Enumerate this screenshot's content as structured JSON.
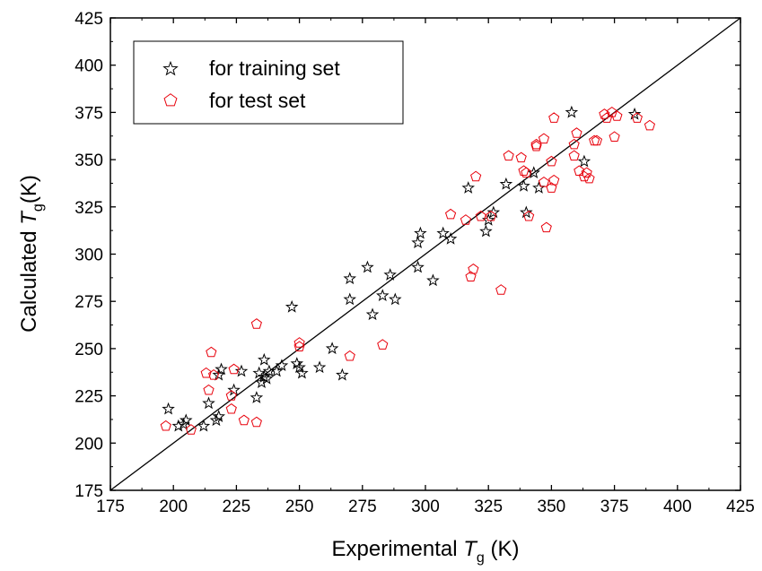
{
  "chart_data": {
    "type": "scatter",
    "title": "",
    "xlabel": {
      "prefix": "Experimental ",
      "symbol": "T",
      "subscript": "g",
      "suffix": " (K)"
    },
    "ylabel": {
      "prefix": "Calculated ",
      "symbol": "T",
      "subscript": "g",
      "suffix": "(K)"
    },
    "xlim": [
      175,
      425
    ],
    "ylim": [
      175,
      425
    ],
    "x_ticks": [
      175,
      200,
      225,
      250,
      275,
      300,
      325,
      350,
      375,
      400,
      425
    ],
    "y_ticks": [
      175,
      200,
      225,
      250,
      275,
      300,
      325,
      350,
      375,
      400,
      425
    ],
    "grid": false,
    "legend_position": "top-left",
    "reference_line": {
      "type": "y=x"
    },
    "series": [
      {
        "name": "for training set",
        "marker": "star",
        "color": "#000000",
        "points": [
          [
            198,
            218
          ],
          [
            202,
            209
          ],
          [
            204,
            210
          ],
          [
            205,
            212
          ],
          [
            212,
            209
          ],
          [
            214,
            221
          ],
          [
            217,
            212
          ],
          [
            218,
            214
          ],
          [
            218,
            236
          ],
          [
            219,
            239
          ],
          [
            224,
            228
          ],
          [
            227,
            238
          ],
          [
            233,
            224
          ],
          [
            234,
            237
          ],
          [
            235,
            232
          ],
          [
            236,
            235
          ],
          [
            236,
            244
          ],
          [
            237,
            234
          ],
          [
            238,
            238
          ],
          [
            241,
            238
          ],
          [
            243,
            241
          ],
          [
            247,
            272
          ],
          [
            249,
            242
          ],
          [
            250,
            240
          ],
          [
            251,
            237
          ],
          [
            258,
            240
          ],
          [
            263,
            250
          ],
          [
            267,
            236
          ],
          [
            270,
            276
          ],
          [
            270,
            287
          ],
          [
            277,
            293
          ],
          [
            279,
            268
          ],
          [
            283,
            278
          ],
          [
            286,
            289
          ],
          [
            288,
            276
          ],
          [
            297,
            293
          ],
          [
            297,
            306
          ],
          [
            298,
            311
          ],
          [
            303,
            286
          ],
          [
            307,
            311
          ],
          [
            310,
            308
          ],
          [
            317,
            335
          ],
          [
            324,
            312
          ],
          [
            325,
            318
          ],
          [
            327,
            322
          ],
          [
            332,
            337
          ],
          [
            339,
            336
          ],
          [
            340,
            322
          ],
          [
            343,
            343
          ],
          [
            345,
            335
          ],
          [
            358,
            375
          ],
          [
            363,
            349
          ],
          [
            383,
            374
          ]
        ]
      },
      {
        "name": "for test set",
        "marker": "pentagon",
        "color": "#e8000b",
        "points": [
          [
            197,
            209
          ],
          [
            207,
            207
          ],
          [
            213,
            237
          ],
          [
            214,
            228
          ],
          [
            215,
            248
          ],
          [
            216,
            236
          ],
          [
            223,
            218
          ],
          [
            223,
            225
          ],
          [
            224,
            239
          ],
          [
            228,
            212
          ],
          [
            233,
            211
          ],
          [
            233,
            263
          ],
          [
            250,
            251
          ],
          [
            250,
            253
          ],
          [
            270,
            246
          ],
          [
            283,
            252
          ],
          [
            310,
            321
          ],
          [
            316,
            318
          ],
          [
            318,
            288
          ],
          [
            319,
            292
          ],
          [
            320,
            341
          ],
          [
            322,
            320
          ],
          [
            326,
            320
          ],
          [
            330,
            281
          ],
          [
            333,
            352
          ],
          [
            338,
            351
          ],
          [
            339,
            344
          ],
          [
            340,
            343
          ],
          [
            341,
            320
          ],
          [
            344,
            357
          ],
          [
            344,
            358
          ],
          [
            347,
            338
          ],
          [
            347,
            361
          ],
          [
            348,
            314
          ],
          [
            350,
            335
          ],
          [
            350,
            349
          ],
          [
            351,
            339
          ],
          [
            351,
            372
          ],
          [
            359,
            352
          ],
          [
            359,
            358
          ],
          [
            360,
            364
          ],
          [
            361,
            344
          ],
          [
            363,
            341
          ],
          [
            364,
            343
          ],
          [
            365,
            340
          ],
          [
            367,
            360
          ],
          [
            368,
            360
          ],
          [
            371,
            374
          ],
          [
            372,
            372
          ],
          [
            374,
            375
          ],
          [
            375,
            362
          ],
          [
            376,
            373
          ],
          [
            384,
            372
          ],
          [
            389,
            368
          ]
        ]
      }
    ]
  }
}
